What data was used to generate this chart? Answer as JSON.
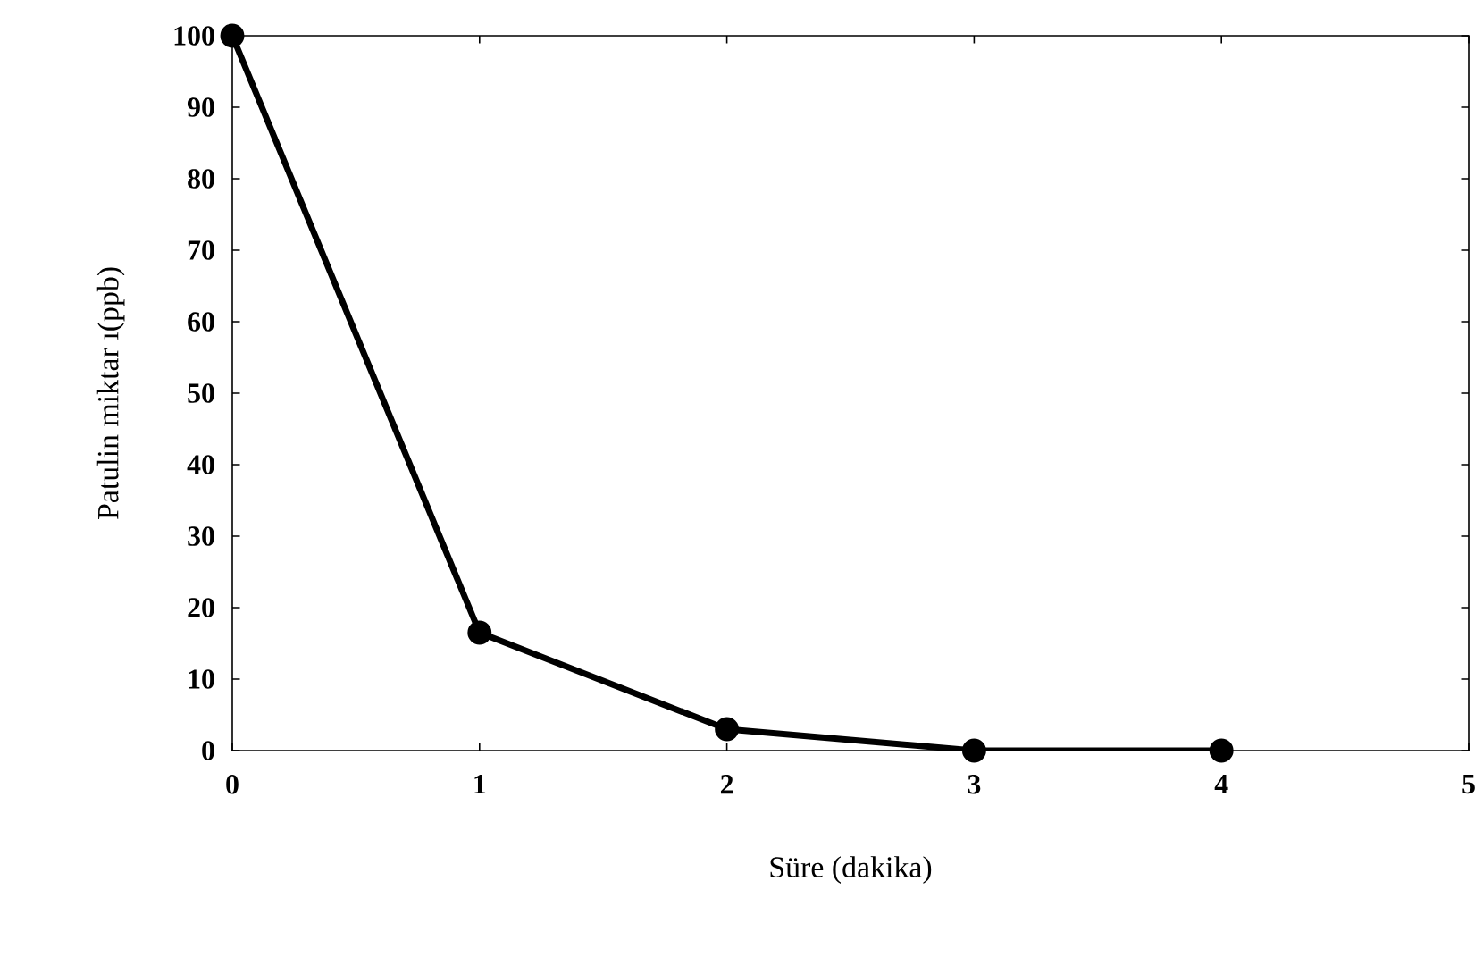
{
  "chart_data": {
    "type": "line",
    "xlabel": "Süre (dakika)",
    "ylabel": "Patulin miktar ı(ppb)",
    "x": [
      0,
      1,
      2,
      3,
      4
    ],
    "values": [
      100,
      16.5,
      3,
      0,
      0
    ],
    "color": "#000000",
    "marker": "circle",
    "line_style": "solid",
    "xlim": [
      0,
      5
    ],
    "xticks": [
      0,
      1,
      2,
      3,
      4,
      5
    ],
    "ylim": [
      0,
      100
    ],
    "yticks": [
      0,
      10,
      20,
      30,
      40,
      50,
      60,
      70,
      80,
      90,
      100
    ]
  }
}
